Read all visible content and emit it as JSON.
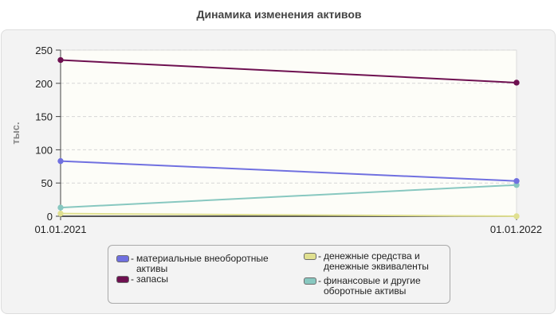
{
  "chart_data": {
    "type": "line",
    "title": "Динамика изменения активов",
    "ylabel": "тыс.",
    "xlabel": "",
    "x": [
      "01.01.2021",
      "01.01.2022"
    ],
    "ylim": [
      0,
      250
    ],
    "yticks": [
      0,
      50,
      100,
      150,
      200,
      250
    ],
    "grid": true,
    "legend_position": "bottom",
    "series": [
      {
        "name": "материальные внеоборотные активы",
        "values": [
          83,
          53
        ],
        "color": "#7070e0"
      },
      {
        "name": "запасы",
        "values": [
          235,
          201
        ],
        "color": "#6e1050"
      },
      {
        "name": "денежные средства и денежные эквиваленты",
        "values": [
          4,
          0
        ],
        "color": "#e0e090"
      },
      {
        "name": "финансовые и другие оборотные активы",
        "values": [
          13,
          47
        ],
        "color": "#88c8c0"
      }
    ]
  },
  "legend": {
    "dash": "-"
  }
}
